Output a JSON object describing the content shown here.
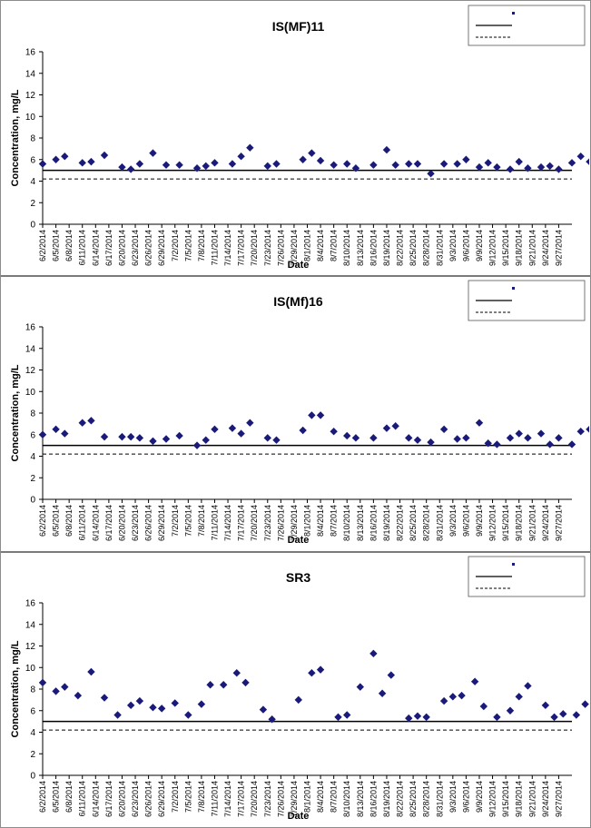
{
  "chart_data": [
    {
      "type": "scatter",
      "title": "IS(MF)11",
      "xlabel": "Date",
      "ylabel": "Concentration, mg/L",
      "ylim": [
        0,
        16
      ],
      "yticks": [
        0,
        2,
        4,
        6,
        8,
        10,
        12,
        14,
        16
      ],
      "xlim": [
        "6/2/2014",
        "9/30/2014"
      ],
      "xticks": [
        "6/2/2014",
        "6/5/2014",
        "6/8/2014",
        "6/11/2014",
        "6/14/2014",
        "6/17/2014",
        "6/20/2014",
        "6/23/2014",
        "6/26/2014",
        "6/29/2014",
        "7/2/2014",
        "7/5/2014",
        "7/8/2014",
        "7/11/2014",
        "7/14/2014",
        "7/17/2014",
        "7/20/2014",
        "7/23/2014",
        "7/26/2014",
        "7/29/2014",
        "8/1/2014",
        "8/4/2014",
        "8/7/2014",
        "8/10/2014",
        "8/13/2014",
        "8/16/2014",
        "8/19/2014",
        "8/22/2014",
        "8/25/2014",
        "8/28/2014",
        "8/31/2014",
        "9/3/2014",
        "9/6/2014",
        "9/9/2014",
        "9/12/2014",
        "9/15/2014",
        "9/18/2014",
        "9/21/2014",
        "9/24/2014",
        "9/27/2014"
      ],
      "grid": false,
      "legend_position": "top-right",
      "legend": [
        "",
        "",
        ""
      ],
      "thresholds": [
        {
          "y": 5.0,
          "style": "solid",
          "color": "#000000"
        },
        {
          "y": 4.2,
          "style": "dashed",
          "color": "#000000"
        }
      ],
      "series": [
        {
          "marker": "diamond",
          "color": "#1a1a7a",
          "points": [
            [
              "6/2/2014",
              5.6
            ],
            [
              "6/5/2014",
              6.0
            ],
            [
              "6/7/2014",
              6.3
            ],
            [
              "6/11/2014",
              5.7
            ],
            [
              "6/13/2014",
              5.8
            ],
            [
              "6/16/2014",
              6.4
            ],
            [
              "6/20/2014",
              5.3
            ],
            [
              "6/22/2014",
              5.1
            ],
            [
              "6/24/2014",
              5.6
            ],
            [
              "6/27/2014",
              6.6
            ],
            [
              "6/30/2014",
              5.5
            ],
            [
              "7/3/2014",
              5.5
            ],
            [
              "7/7/2014",
              5.2
            ],
            [
              "7/9/2014",
              5.4
            ],
            [
              "7/11/2014",
              5.7
            ],
            [
              "7/15/2014",
              5.6
            ],
            [
              "7/17/2014",
              6.3
            ],
            [
              "7/19/2014",
              7.1
            ],
            [
              "7/23/2014",
              5.4
            ],
            [
              "7/25/2014",
              5.6
            ],
            [
              "7/31/2014",
              6.0
            ],
            [
              "8/2/2014",
              6.6
            ],
            [
              "8/4/2014",
              5.9
            ],
            [
              "8/7/2014",
              5.5
            ],
            [
              "8/10/2014",
              5.6
            ],
            [
              "8/12/2014",
              5.2
            ],
            [
              "8/16/2014",
              5.5
            ],
            [
              "8/19/2014",
              6.9
            ],
            [
              "8/21/2014",
              5.5
            ],
            [
              "8/24/2014",
              5.6
            ],
            [
              "8/26/2014",
              5.6
            ],
            [
              "8/29/2014",
              4.7
            ],
            [
              "9/1/2014",
              5.6
            ],
            [
              "9/4/2014",
              5.6
            ],
            [
              "9/6/2014",
              6.0
            ],
            [
              "9/9/2014",
              5.3
            ],
            [
              "9/11/2014",
              5.7
            ],
            [
              "9/13/2014",
              5.3
            ],
            [
              "9/16/2014",
              5.1
            ],
            [
              "9/18/2014",
              5.8
            ],
            [
              "9/20/2014",
              5.2
            ],
            [
              "9/23/2014",
              5.3
            ],
            [
              "9/25/2014",
              5.4
            ],
            [
              "9/27/2014",
              5.1
            ],
            [
              "9/30/2014",
              5.7
            ],
            [
              "10/2/2014",
              6.3
            ],
            [
              "10/4/2014",
              5.8
            ],
            [
              "10/7/2014",
              7.0
            ],
            [
              "10/9/2014",
              6.0
            ],
            [
              "10/11/2014",
              5.5
            ],
            [
              "10/14/2014",
              5.1
            ]
          ]
        }
      ]
    },
    {
      "type": "scatter",
      "title": "IS(Mf)16",
      "xlabel": "Date",
      "ylabel": "Concentration, mg/L",
      "ylim": [
        0,
        16
      ],
      "yticks": [
        0,
        2,
        4,
        6,
        8,
        10,
        12,
        14,
        16
      ],
      "xlim": [
        "6/2/2014",
        "9/30/2014"
      ],
      "xticks": [
        "6/2/2014",
        "6/5/2014",
        "6/8/2014",
        "6/11/2014",
        "6/14/2014",
        "6/17/2014",
        "6/20/2014",
        "6/23/2014",
        "6/26/2014",
        "6/29/2014",
        "7/2/2014",
        "7/5/2014",
        "7/8/2014",
        "7/11/2014",
        "7/14/2014",
        "7/17/2014",
        "7/20/2014",
        "7/23/2014",
        "7/26/2014",
        "7/29/2014",
        "8/1/2014",
        "8/4/2014",
        "8/7/2014",
        "8/10/2014",
        "8/13/2014",
        "8/16/2014",
        "8/19/2014",
        "8/22/2014",
        "8/25/2014",
        "8/28/2014",
        "8/31/2014",
        "9/3/2014",
        "9/6/2014",
        "9/9/2014",
        "9/12/2014",
        "9/15/2014",
        "9/18/2014",
        "9/21/2014",
        "9/24/2014",
        "9/27/2014"
      ],
      "grid": false,
      "legend_position": "top-right",
      "legend": [
        "",
        "",
        ""
      ],
      "thresholds": [
        {
          "y": 5.0,
          "style": "solid",
          "color": "#000000"
        },
        {
          "y": 4.2,
          "style": "dashed",
          "color": "#000000"
        }
      ],
      "series": [
        {
          "marker": "diamond",
          "color": "#1a1a7a",
          "points": [
            [
              "6/2/2014",
              6.0
            ],
            [
              "6/5/2014",
              6.5
            ],
            [
              "6/7/2014",
              6.1
            ],
            [
              "6/11/2014",
              7.1
            ],
            [
              "6/13/2014",
              7.3
            ],
            [
              "6/16/2014",
              5.8
            ],
            [
              "6/20/2014",
              5.8
            ],
            [
              "6/22/2014",
              5.8
            ],
            [
              "6/24/2014",
              5.7
            ],
            [
              "6/27/2014",
              5.4
            ],
            [
              "6/30/2014",
              5.6
            ],
            [
              "7/3/2014",
              5.9
            ],
            [
              "7/7/2014",
              5.0
            ],
            [
              "7/9/2014",
              5.5
            ],
            [
              "7/11/2014",
              6.5
            ],
            [
              "7/15/2014",
              6.6
            ],
            [
              "7/17/2014",
              6.1
            ],
            [
              "7/19/2014",
              7.1
            ],
            [
              "7/23/2014",
              5.7
            ],
            [
              "7/25/2014",
              5.5
            ],
            [
              "7/31/2014",
              6.4
            ],
            [
              "8/2/2014",
              7.8
            ],
            [
              "8/4/2014",
              7.8
            ],
            [
              "8/7/2014",
              6.3
            ],
            [
              "8/10/2014",
              5.9
            ],
            [
              "8/12/2014",
              5.7
            ],
            [
              "8/16/2014",
              5.7
            ],
            [
              "8/19/2014",
              6.6
            ],
            [
              "8/21/2014",
              6.8
            ],
            [
              "8/24/2014",
              5.7
            ],
            [
              "8/26/2014",
              5.5
            ],
            [
              "8/29/2014",
              5.3
            ],
            [
              "9/1/2014",
              6.5
            ],
            [
              "9/4/2014",
              5.6
            ],
            [
              "9/6/2014",
              5.7
            ],
            [
              "9/9/2014",
              7.1
            ],
            [
              "9/11/2014",
              5.2
            ],
            [
              "9/13/2014",
              5.1
            ],
            [
              "9/16/2014",
              5.7
            ],
            [
              "9/18/2014",
              6.1
            ],
            [
              "9/20/2014",
              5.7
            ],
            [
              "9/23/2014",
              6.1
            ],
            [
              "9/25/2014",
              5.1
            ],
            [
              "9/27/2014",
              5.7
            ],
            [
              "9/30/2014",
              5.1
            ],
            [
              "10/2/2014",
              6.3
            ],
            [
              "10/4/2014",
              6.5
            ],
            [
              "10/7/2014",
              5.9
            ],
            [
              "10/9/2014",
              6.3
            ],
            [
              "10/11/2014",
              5.9
            ],
            [
              "10/14/2014",
              5.3
            ]
          ]
        }
      ]
    },
    {
      "type": "scatter",
      "title": "SR3",
      "xlabel": "Date",
      "ylabel": "Concentration, mg/L",
      "ylim": [
        0,
        16
      ],
      "yticks": [
        0,
        2,
        4,
        6,
        8,
        10,
        12,
        14,
        16
      ],
      "xlim": [
        "6/2/2014",
        "9/30/2014"
      ],
      "xticks": [
        "6/2/2014",
        "6/5/2014",
        "6/8/2014",
        "6/11/2014",
        "6/14/2014",
        "6/17/2014",
        "6/20/2014",
        "6/23/2014",
        "6/26/2014",
        "6/29/2014",
        "7/2/2014",
        "7/5/2014",
        "7/8/2014",
        "7/11/2014",
        "7/14/2014",
        "7/17/2014",
        "7/20/2014",
        "7/23/2014",
        "7/26/2014",
        "7/29/2014",
        "8/1/2014",
        "8/4/2014",
        "8/7/2014",
        "8/10/2014",
        "8/13/2014",
        "8/16/2014",
        "8/19/2014",
        "8/22/2014",
        "8/25/2014",
        "8/28/2014",
        "8/31/2014",
        "9/3/2014",
        "9/6/2014",
        "9/9/2014",
        "9/12/2014",
        "9/15/2014",
        "9/18/2014",
        "9/21/2014",
        "9/24/2014",
        "9/27/2014"
      ],
      "grid": false,
      "legend_position": "top-right",
      "legend": [
        "",
        "",
        ""
      ],
      "thresholds": [
        {
          "y": 5.0,
          "style": "solid",
          "color": "#000000"
        },
        {
          "y": 4.2,
          "style": "dashed",
          "color": "#000000"
        }
      ],
      "series": [
        {
          "marker": "diamond",
          "color": "#1a1a7a",
          "points": [
            [
              "6/2/2014",
              8.6
            ],
            [
              "6/5/2014",
              7.8
            ],
            [
              "6/7/2014",
              8.2
            ],
            [
              "6/10/2014",
              7.4
            ],
            [
              "6/13/2014",
              9.6
            ],
            [
              "6/16/2014",
              7.2
            ],
            [
              "6/19/2014",
              5.6
            ],
            [
              "6/22/2014",
              6.5
            ],
            [
              "6/24/2014",
              6.9
            ],
            [
              "6/27/2014",
              6.3
            ],
            [
              "6/29/2014",
              6.2
            ],
            [
              "7/2/2014",
              6.7
            ],
            [
              "7/5/2014",
              5.6
            ],
            [
              "7/8/2014",
              6.6
            ],
            [
              "7/10/2014",
              8.4
            ],
            [
              "7/13/2014",
              8.4
            ],
            [
              "7/16/2014",
              9.5
            ],
            [
              "7/18/2014",
              8.6
            ],
            [
              "7/22/2014",
              6.1
            ],
            [
              "7/24/2014",
              5.2
            ],
            [
              "7/30/2014",
              7.0
            ],
            [
              "8/2/2014",
              9.5
            ],
            [
              "8/4/2014",
              9.8
            ],
            [
              "8/8/2014",
              5.4
            ],
            [
              "8/10/2014",
              5.6
            ],
            [
              "8/13/2014",
              8.2
            ],
            [
              "8/16/2014",
              11.3
            ],
            [
              "8/18/2014",
              7.6
            ],
            [
              "8/20/2014",
              9.3
            ],
            [
              "8/24/2014",
              5.3
            ],
            [
              "8/26/2014",
              5.5
            ],
            [
              "8/28/2014",
              5.4
            ],
            [
              "9/1/2014",
              6.9
            ],
            [
              "9/3/2014",
              7.3
            ],
            [
              "9/5/2014",
              7.4
            ],
            [
              "9/8/2014",
              8.7
            ],
            [
              "9/10/2014",
              6.4
            ],
            [
              "9/13/2014",
              5.4
            ],
            [
              "9/16/2014",
              6.0
            ],
            [
              "9/18/2014",
              7.3
            ],
            [
              "9/20/2014",
              8.3
            ],
            [
              "9/24/2014",
              6.5
            ],
            [
              "9/26/2014",
              5.4
            ],
            [
              "9/28/2014",
              5.7
            ],
            [
              "10/1/2014",
              5.6
            ],
            [
              "10/3/2014",
              6.6
            ],
            [
              "10/5/2014",
              6.7
            ],
            [
              "10/8/2014",
              6.9
            ],
            [
              "10/10/2014",
              6.7
            ],
            [
              "10/12/2014",
              5.9
            ],
            [
              "10/15/2014",
              6.0
            ]
          ]
        }
      ]
    }
  ]
}
